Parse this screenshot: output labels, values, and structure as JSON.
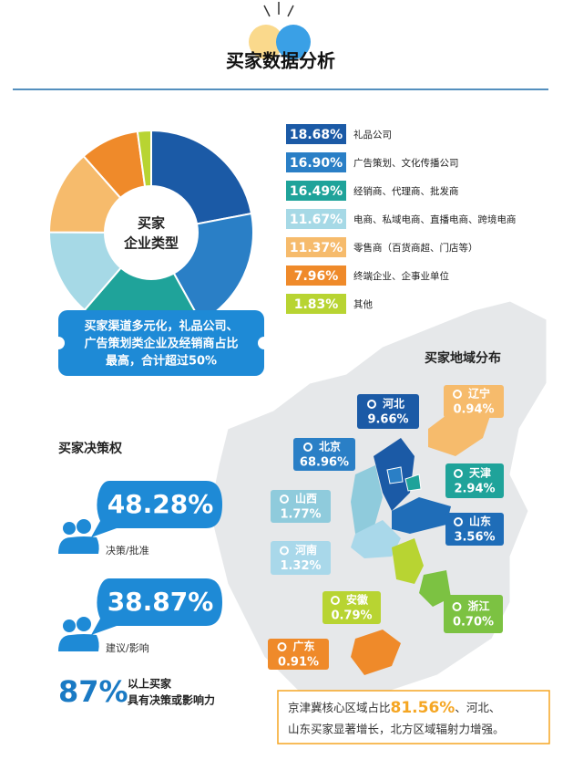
{
  "header": {
    "title": "买家数据分析"
  },
  "chart_data": {
    "type": "pie",
    "center_label": [
      "买家",
      "企业类型"
    ],
    "categories": [
      "礼品公司",
      "广告策划、文化传播公司",
      "经销商、代理商、批发商",
      "电商、私域电商、直播电商、跨境电商",
      "零售商（百货商超、门店等）",
      "终端企业、企事业单位",
      "其他"
    ],
    "values": [
      18.68,
      16.9,
      16.49,
      11.67,
      11.37,
      7.96,
      1.83
    ],
    "value_labels": [
      "18.68%",
      "16.90%",
      "16.49%",
      "11.67%",
      "11.37%",
      "7.96%",
      "1.83%"
    ],
    "colors": [
      "#1b5aa6",
      "#2a7fc6",
      "#1fa39a",
      "#a6d9e6",
      "#f6bb6c",
      "#ef8a2a",
      "#b8d432"
    ]
  },
  "pie_note": [
    "买家渠道多元化，礼品公司、",
    "广告策划类企业及经销商占比",
    "最高，合计超过50%"
  ],
  "decision": {
    "title": "买家决策权",
    "items": [
      {
        "value": "48.28%",
        "caption": "决策/批准"
      },
      {
        "value": "38.87%",
        "caption": "建议/影响"
      }
    ],
    "summary": {
      "value": "87%",
      "lines": [
        "以上买家",
        "具有决策或影响力"
      ]
    }
  },
  "region": {
    "title": "买家地域分布",
    "items": [
      {
        "name": "河北",
        "value": "9.66%",
        "color": "#1b5aa6"
      },
      {
        "name": "辽宁",
        "value": "0.94%",
        "color": "#f6bb6c"
      },
      {
        "name": "北京",
        "value": "68.96%",
        "color": "#2a7fc6"
      },
      {
        "name": "天津",
        "value": "2.94%",
        "color": "#1fa39a"
      },
      {
        "name": "山西",
        "value": "1.77%",
        "color": "#8fcbdc"
      },
      {
        "name": "山东",
        "value": "3.56%",
        "color": "#1f6db8"
      },
      {
        "name": "河南",
        "value": "1.32%",
        "color": "#a9d8ea"
      },
      {
        "name": "安徽",
        "value": "0.79%",
        "color": "#b8d432"
      },
      {
        "name": "浙江",
        "value": "0.70%",
        "color": "#7cc242"
      },
      {
        "name": "广东",
        "value": "0.91%",
        "color": "#ef8a2a"
      }
    ],
    "note": {
      "line1": [
        "京津冀核心区域占比",
        "81.56%",
        "、河北、"
      ],
      "line2": "山东买家显著增长，北方区域辐射力增强。"
    }
  }
}
